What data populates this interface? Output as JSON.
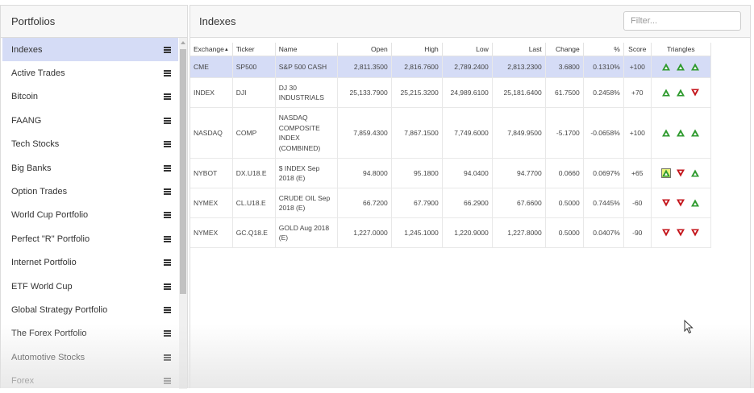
{
  "sidebar": {
    "title": "Portfolios",
    "items": [
      {
        "label": "Indexes",
        "selected": true
      },
      {
        "label": "Active Trades"
      },
      {
        "label": "Bitcoin"
      },
      {
        "label": "FAANG"
      },
      {
        "label": "Tech Stocks"
      },
      {
        "label": "Big Banks"
      },
      {
        "label": "Option Trades"
      },
      {
        "label": "World Cup Portfolio"
      },
      {
        "label": "Perfect \"R\" Portfolio"
      },
      {
        "label": "Internet Portfolio"
      },
      {
        "label": "ETF World Cup"
      },
      {
        "label": "Global Strategy Portfolio"
      },
      {
        "label": "The Forex Portfolio"
      },
      {
        "label": "Automotive Stocks"
      },
      {
        "label": "Forex"
      }
    ]
  },
  "main": {
    "title": "Indexes",
    "filter_placeholder": "Filter...",
    "columns": [
      "Exchange",
      "Ticker",
      "Name",
      "Open",
      "High",
      "Low",
      "Last",
      "Change",
      "%",
      "Score",
      "Triangles"
    ],
    "rows": [
      {
        "exchange": "CME",
        "ticker": "SP500",
        "name": "S&P 500 CASH",
        "open": "2,811.3500",
        "high": "2,816.7600",
        "low": "2,789.2400",
        "last": "2,813.2300",
        "change": "3.6800",
        "pct": "0.1310%",
        "score": "+100",
        "triangles": [
          "up",
          "up",
          "up"
        ],
        "selected": true
      },
      {
        "exchange": "INDEX",
        "ticker": "DJI",
        "name": "DJ 30 INDUSTRIALS",
        "open": "25,133.7900",
        "high": "25,215.3200",
        "low": "24,989.6100",
        "last": "25,181.6400",
        "change": "61.7500",
        "pct": "0.2458%",
        "score": "+70",
        "triangles": [
          "up",
          "up",
          "down"
        ]
      },
      {
        "exchange": "NASDAQ",
        "ticker": "COMP",
        "name": "NASDAQ COMPOSITE INDEX (COMBINED)",
        "open": "7,859.4300",
        "high": "7,867.1500",
        "low": "7,749.6000",
        "last": "7,849.9500",
        "change": "-5.1700",
        "pct": "-0.0658%",
        "score": "+100",
        "triangles": [
          "up",
          "up",
          "up"
        ]
      },
      {
        "exchange": "NYBOT",
        "ticker": "DX.U18.E",
        "name": "$ INDEX Sep 2018 (E)",
        "open": "94.8000",
        "high": "95.1800",
        "low": "94.0400",
        "last": "94.7700",
        "change": "0.0660",
        "pct": "0.0697%",
        "score": "+65",
        "triangles": [
          "up-boxed",
          "down",
          "up"
        ]
      },
      {
        "exchange": "NYMEX",
        "ticker": "CL.U18.E",
        "name": "CRUDE OIL Sep 2018 (E)",
        "open": "66.7200",
        "high": "67.7900",
        "low": "66.2900",
        "last": "67.6600",
        "change": "0.5000",
        "pct": "0.7445%",
        "score": "-60",
        "triangles": [
          "down",
          "down",
          "up"
        ]
      },
      {
        "exchange": "NYMEX",
        "ticker": "GC.Q18.E",
        "name": "GOLD Aug 2018 (E)",
        "open": "1,227.0000",
        "high": "1,245.1000",
        "low": "1,220.9000",
        "last": "1,227.8000",
        "change": "0.5000",
        "pct": "0.0407%",
        "score": "-90",
        "triangles": [
          "down",
          "down",
          "down"
        ]
      }
    ]
  },
  "colors": {
    "selected_bg": "#d5dcf6",
    "positive": "#3b9a3b",
    "negative": "#c0392b",
    "triangle_up": "#2e9a2e",
    "triangle_down": "#c4161c"
  }
}
